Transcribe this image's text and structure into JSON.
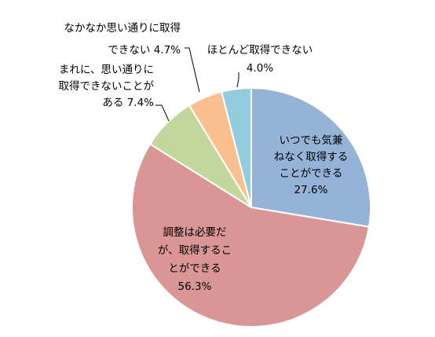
{
  "chart_data": {
    "type": "pie",
    "start_angle_deg": 0,
    "direction": "clockwise",
    "slices": [
      {
        "lines": [
          "いつでも気兼",
          "ねなく取得する",
          "ことができる",
          "27.6%"
        ],
        "value": 27.6,
        "color": "#95B3D7"
      },
      {
        "lines": [
          "調整は必要だ",
          "が、取得するこ",
          "とができる",
          "56.3%"
        ],
        "value": 56.3,
        "color": "#D99694"
      },
      {
        "lines": [
          "まれに、思い通りに",
          "取得できないことが",
          "ある 7.4%"
        ],
        "value": 7.4,
        "color": "#C3D69B"
      },
      {
        "lines": [
          "なかなか思い通りに取得",
          "できない 4.7%"
        ],
        "value": 4.7,
        "color": "#FAC090"
      },
      {
        "lines": [
          "ほとんど取得できない",
          "4.0%"
        ],
        "value": 4.0,
        "color": "#93CDDD"
      }
    ],
    "legend": "none"
  }
}
